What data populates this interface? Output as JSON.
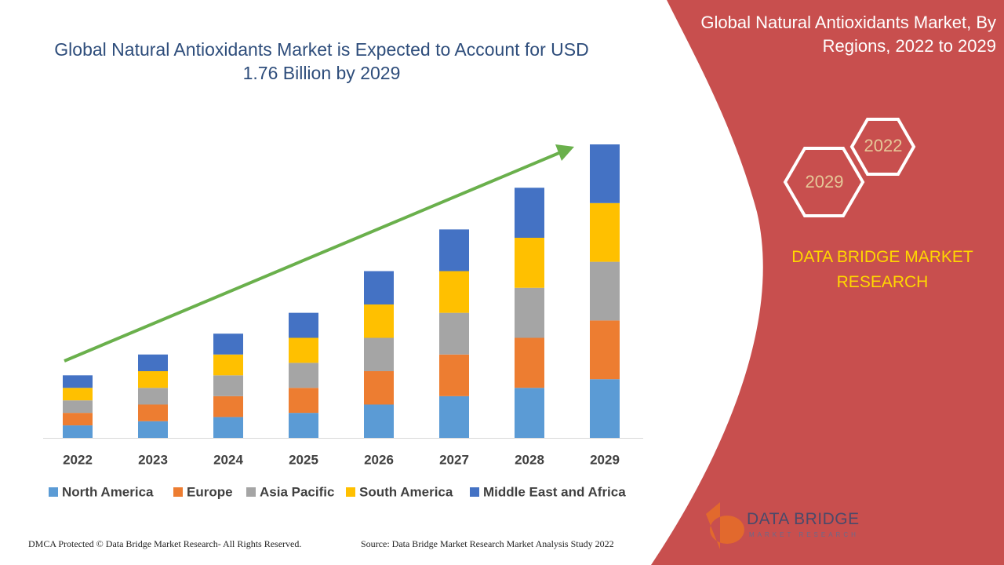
{
  "chart_data": {
    "type": "bar",
    "stacked": true,
    "title": "Global Natural Antioxidants Market is Expected to Account for USD 1.76 Billion by 2029",
    "categories": [
      "2022",
      "2023",
      "2024",
      "2025",
      "2026",
      "2027",
      "2028",
      "2029"
    ],
    "series": [
      {
        "name": "North America",
        "color": "#5b9bd5",
        "values": [
          0.075,
          0.1,
          0.125,
          0.15,
          0.2,
          0.25,
          0.3,
          0.352
        ]
      },
      {
        "name": "Europe",
        "color": "#ed7d31",
        "values": [
          0.075,
          0.1,
          0.125,
          0.15,
          0.2,
          0.25,
          0.3,
          0.352
        ]
      },
      {
        "name": "Asia Pacific",
        "color": "#a5a5a5",
        "values": [
          0.075,
          0.1,
          0.125,
          0.15,
          0.2,
          0.25,
          0.3,
          0.352
        ]
      },
      {
        "name": "South America",
        "color": "#ffc000",
        "values": [
          0.075,
          0.1,
          0.125,
          0.15,
          0.2,
          0.25,
          0.3,
          0.352
        ]
      },
      {
        "name": "Middle East and Africa",
        "color": "#4472c4",
        "values": [
          0.075,
          0.1,
          0.125,
          0.15,
          0.2,
          0.25,
          0.3,
          0.352
        ]
      }
    ],
    "ylim": [
      0,
      1.76
    ]
  },
  "panel": {
    "title": "Global Natural Antioxidants Market, By Regions, 2022 to 2029",
    "hexagons": [
      "2022",
      "2029"
    ],
    "brand": "DATA BRIDGE MARKET RESEARCH"
  },
  "logo": {
    "name": "DATA BRIDGE",
    "tagline": "MARKET RESEARCH"
  },
  "footer": {
    "copyright": "DMCA Protected © Data Bridge Market Research- All Rights Reserved.",
    "source": "Source: Data Bridge Market Research Market Analysis Study 2022"
  }
}
